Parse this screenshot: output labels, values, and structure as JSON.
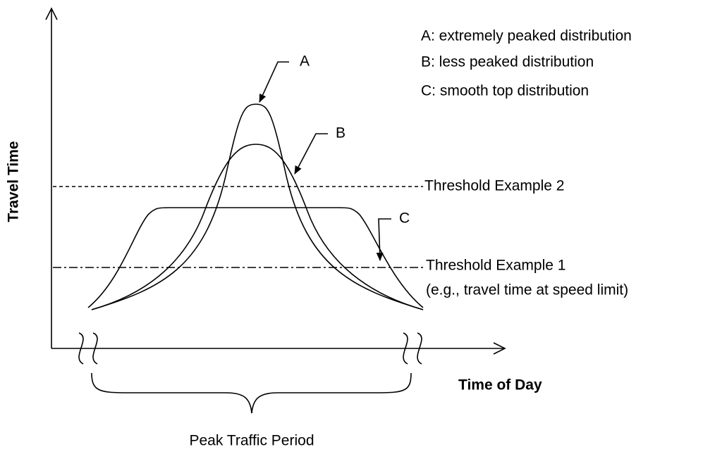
{
  "curve_labels": [
    "A",
    "B",
    "C"
  ],
  "legend": [
    "A: extremely peaked distribution",
    "B: less peaked distribution",
    "C: smooth top distribution"
  ],
  "axes": {
    "y": "Travel Time",
    "x": "Time of Day"
  },
  "thresholds": [
    {
      "label": "Threshold Example 2"
    },
    {
      "label": "Threshold Example 1",
      "note": "(e.g., travel time at speed limit)"
    }
  ],
  "period": "Peak Traffic Period"
}
